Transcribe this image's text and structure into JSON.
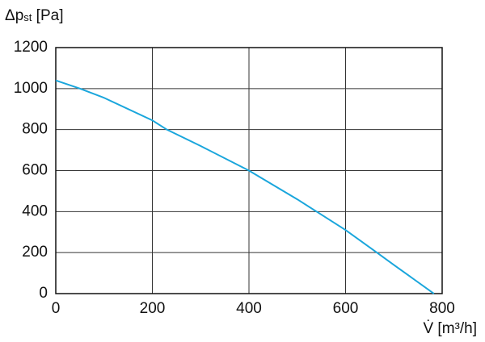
{
  "chart_data": {
    "type": "line",
    "ylabel": [
      "Δp",
      "st",
      " [Pa]"
    ],
    "xlabel": "V̇ [m³/h]",
    "x": [
      0,
      50,
      100,
      200,
      230,
      300,
      400,
      500,
      540,
      600,
      665,
      700,
      783
    ],
    "series": [
      {
        "color": "#1aa6dc",
        "values": [
          1040,
          1000,
          955,
          845,
          800,
          720,
          600,
          460,
          400,
          310,
          200,
          140,
          0
        ]
      }
    ],
    "xlim": [
      0,
      800
    ],
    "xticks": [
      0,
      200,
      400,
      600,
      800
    ],
    "ylim": [
      0,
      1200
    ],
    "yticks": [
      0,
      200,
      400,
      600,
      800,
      1000,
      1200
    ],
    "grid": true
  }
}
